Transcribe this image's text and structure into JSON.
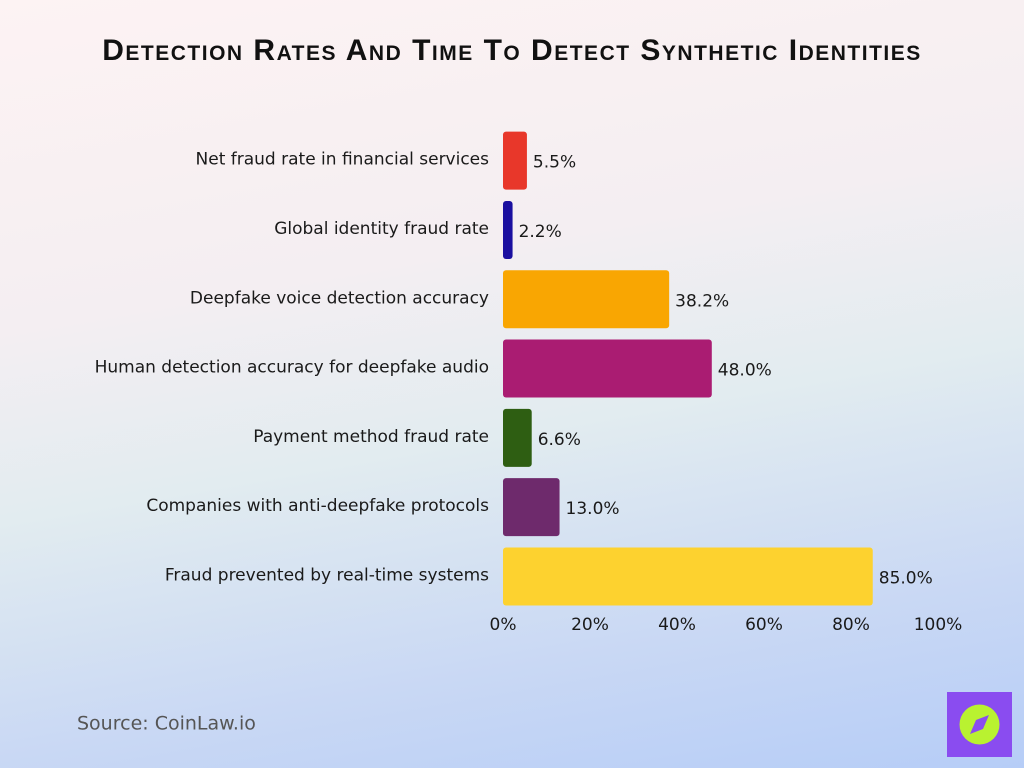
{
  "chart_data": {
    "type": "bar",
    "orientation": "horizontal",
    "title": "Detection Rates And Time To Detect Synthetic Identities",
    "categories": [
      "Net fraud rate in financial services",
      "Global identity fraud rate",
      "Deepfake voice detection accuracy",
      "Human detection accuracy for deepfake audio",
      "Payment method fraud rate",
      "Companies with anti-deepfake protocols",
      "Fraud prevented by real-time systems"
    ],
    "values": [
      5.5,
      2.2,
      38.2,
      48.0,
      6.6,
      13.0,
      85.0
    ],
    "value_labels": [
      "5.5%",
      "2.2%",
      "38.2%",
      "48.0%",
      "6.6%",
      "13.0%",
      "85.0%"
    ],
    "colors": [
      "#e8372a",
      "#1a0fa0",
      "#f9a602",
      "#aa1c72",
      "#2e5e12",
      "#6e2a6c",
      "#fdd22f"
    ],
    "xlim": [
      0,
      100
    ],
    "xticks": [
      {
        "value": 0,
        "label": "0%"
      },
      {
        "value": 20,
        "label": "20%"
      },
      {
        "value": 40,
        "label": "40%"
      },
      {
        "value": 60,
        "label": "60%"
      },
      {
        "value": 80,
        "label": "80%"
      },
      {
        "value": 100,
        "label": "100%"
      }
    ],
    "source": "Source: CoinLaw.io"
  }
}
